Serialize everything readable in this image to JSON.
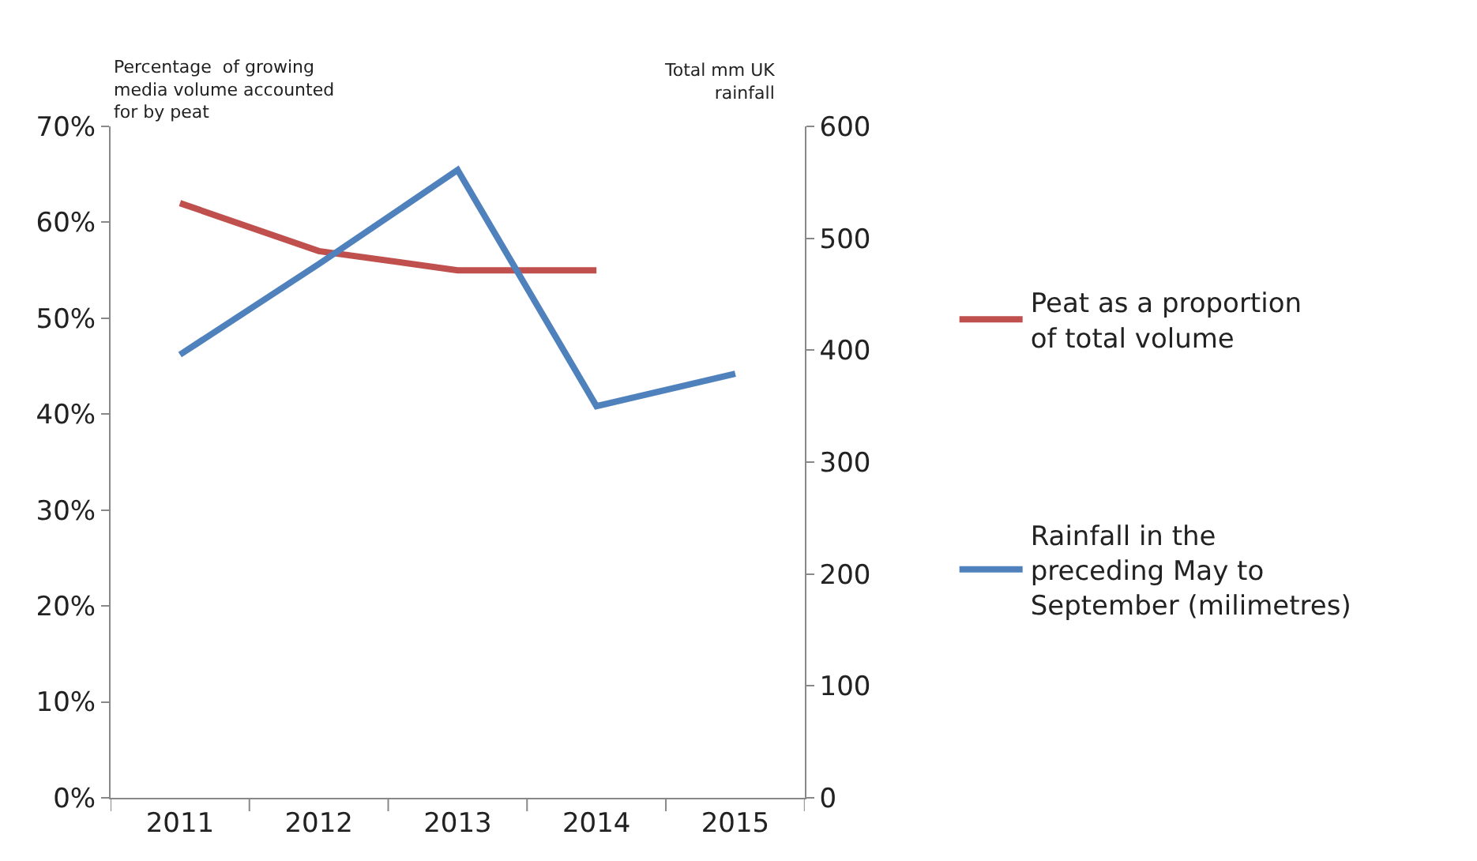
{
  "chart_data": {
    "type": "line",
    "categories": [
      "2011",
      "2012",
      "2013",
      "2014",
      "2015"
    ],
    "ylabel": "Percentage  of growing media volume accounted for by peat",
    "y2label": "Total mm UK rainfall",
    "ylim": [
      0,
      70
    ],
    "yticks": [
      {
        "value": 0,
        "label": "0%"
      },
      {
        "value": 10,
        "label": "10%"
      },
      {
        "value": 20,
        "label": "20%"
      },
      {
        "value": 30,
        "label": "30%"
      },
      {
        "value": 40,
        "label": "40%"
      },
      {
        "value": 50,
        "label": "50%"
      },
      {
        "value": 60,
        "label": "60%"
      },
      {
        "value": 70,
        "label": "70%"
      }
    ],
    "y2lim": [
      0,
      600
    ],
    "y2ticks": [
      0,
      100,
      200,
      300,
      400,
      500,
      600
    ],
    "series": [
      {
        "name": "Peat as a proportion of total volume",
        "color": "#c0504d",
        "values": [
          62,
          57,
          55,
          55,
          null
        ]
      },
      {
        "name": "Rainfall in the preceding May to September (milimetres)",
        "color": "#4f81bd",
        "values": [
          396,
          477,
          561,
          350,
          379
        ],
        "axis": "y2"
      }
    ],
    "legend": "right",
    "marker": "none",
    "line_style": "solid"
  }
}
